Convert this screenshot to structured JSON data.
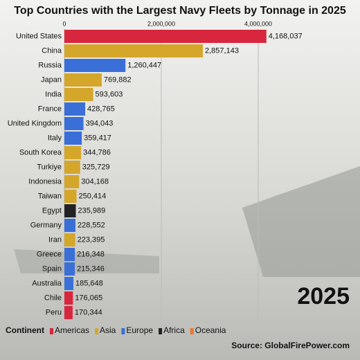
{
  "chart_data": {
    "type": "bar",
    "orientation": "horizontal",
    "title": "Top Countries with the Largest Navy Fleets by Tonnage in 2025",
    "categories": [
      "United States",
      "China",
      "Russia",
      "Japan",
      "India",
      "France",
      "United Kingdom",
      "Italy",
      "South Korea",
      "Turkiye",
      "Indonesia",
      "Taiwan",
      "Egypt",
      "Germany",
      "Iran",
      "Greece",
      "Spain",
      "Australia",
      "Chile",
      "Peru"
    ],
    "values": [
      4168037,
      2857143,
      1260447,
      769882,
      593603,
      428765,
      394043,
      359417,
      344786,
      325729,
      304168,
      250414,
      235989,
      228552,
      223395,
      216348,
      215346,
      185648,
      176065,
      170344
    ],
    "value_labels": [
      "4,168,037",
      "2,857,143",
      "1,260,447",
      "769,882",
      "593,603",
      "428,765",
      "394,043",
      "359,417",
      "344,786",
      "325,729",
      "304,168",
      "250,414",
      "235,989",
      "228,552",
      "223,395",
      "216,348",
      "215,346",
      "185,648",
      "176,065",
      "170,344"
    ],
    "colors": [
      "#d7263d",
      "#d4a62a",
      "#3a6fd8",
      "#d4a62a",
      "#d4a62a",
      "#3a6fd8",
      "#3a6fd8",
      "#3a6fd8",
      "#d4a62a",
      "#d4a62a",
      "#d4a62a",
      "#d4a62a",
      "#222222",
      "#3a6fd8",
      "#d4a62a",
      "#3a6fd8",
      "#3a6fd8",
      "#3a6fd8",
      "#d7263d",
      "#d7263d"
    ],
    "xlim": [
      0,
      6000000
    ],
    "xticks": [
      0,
      {
        "value": 2000000,
        "label": "2,000,000"
      },
      {
        "value": 4000000,
        "label": "4,000,000"
      }
    ],
    "grid": true,
    "year_label": "2025",
    "legend_title": "Continent",
    "legend": [
      {
        "name": "Americas",
        "color": "#d7263d"
      },
      {
        "name": "Asia",
        "color": "#d4a62a"
      },
      {
        "name": "Europe",
        "color": "#3a6fd8"
      },
      {
        "name": "Africa",
        "color": "#222222"
      },
      {
        "name": "Oceania",
        "color": "#e8762c"
      }
    ],
    "source": "Source: GlobalFirePower.com"
  }
}
